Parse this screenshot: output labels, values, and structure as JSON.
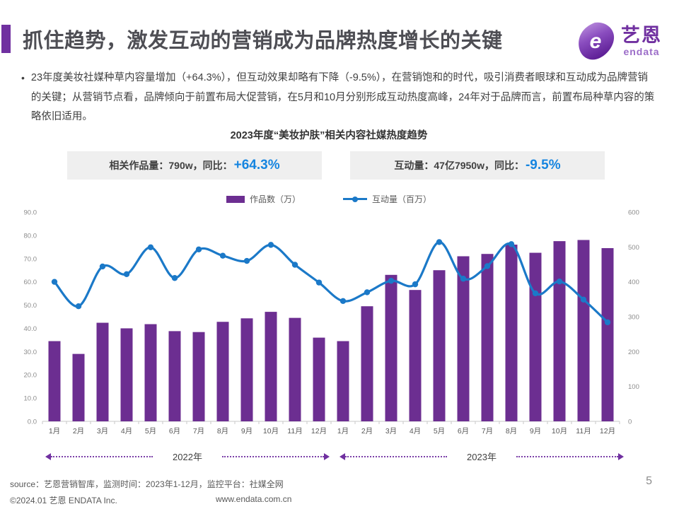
{
  "colors": {
    "accent": "#7030A0",
    "bar": "#6C2E91",
    "line": "#1B79C8",
    "highlight_blue": "#1685E0",
    "stat_box_bg": "#EFEFEF"
  },
  "header": {
    "title": "抓住趋势，激发互动的营销成为品牌热度增长的关键",
    "logo_cn": "艺恩",
    "logo_en": "endata",
    "logo_mark": "e"
  },
  "summary": {
    "bullet": "•",
    "text": "23年度美妆社媒种草内容量增加（+64.3%），但互动效果却略有下降（-9.5%），在营销饱和的时代，吸引消费者眼球和互动成为品牌营销的关键；从营销节点看，品牌倾向于前置布局大促营销，在5月和10月分别形成互动热度高峰，24年对于品牌而言，前置布局种草内容的策略依旧适用。"
  },
  "chart": {
    "title": "2023年度“美妆护肤”相关内容社媒热度趋势",
    "stats": [
      {
        "label": "相关作品量：790w，同比：",
        "value": "+64.3%"
      },
      {
        "label": "互动量：47亿7950w，同比：",
        "value": "-9.5%"
      }
    ]
  },
  "chart_data": {
    "type": "combo",
    "title": "2023年度“美妆护肤”相关内容社媒热度趋势",
    "categories": [
      "1月",
      "2月",
      "3月",
      "4月",
      "5月",
      "6月",
      "7月",
      "8月",
      "9月",
      "10月",
      "11月",
      "12月",
      "1月",
      "2月",
      "3月",
      "4月",
      "5月",
      "6月",
      "7月",
      "8月",
      "9月",
      "10月",
      "11月",
      "12月"
    ],
    "groups": [
      {
        "label": "2022年"
      },
      {
        "label": "2023年"
      }
    ],
    "series": [
      {
        "name": "作品数（万）",
        "chart_type": "bar",
        "axis": "left",
        "color": "#6C2E91",
        "values": [
          34.5,
          29.0,
          42.4,
          40.0,
          41.8,
          38.8,
          38.4,
          42.8,
          44.3,
          47.1,
          44.5,
          36.0,
          34.5,
          49.5,
          63.0,
          56.5,
          65.0,
          71.0,
          72.0,
          76.0,
          72.5,
          77.5,
          78.0,
          74.5
        ]
      },
      {
        "name": "互动量（百万）",
        "chart_type": "line",
        "axis": "right",
        "color": "#1B79C8",
        "values": [
          400,
          330,
          444,
          422,
          499,
          411,
          493,
          475,
          460,
          506,
          449,
          398,
          345,
          370,
          403,
          393,
          514,
          409,
          445,
          508,
          367,
          401,
          349,
          284
        ]
      }
    ],
    "left_axis": {
      "min": 0,
      "max": 90,
      "step": 10,
      "decimals": 1
    },
    "right_axis": {
      "min": 0,
      "max": 600,
      "step": 100,
      "decimals": 0
    },
    "grid": false,
    "legend_position": "top"
  },
  "footer": {
    "source": "source：艺恩营销智库，监测时间：2023年1-12月，监控平台：社媒全网",
    "copyright": "©2024.01 艺恩 ENDATA Inc.",
    "website": "www.endata.com.cn",
    "page": "5"
  }
}
